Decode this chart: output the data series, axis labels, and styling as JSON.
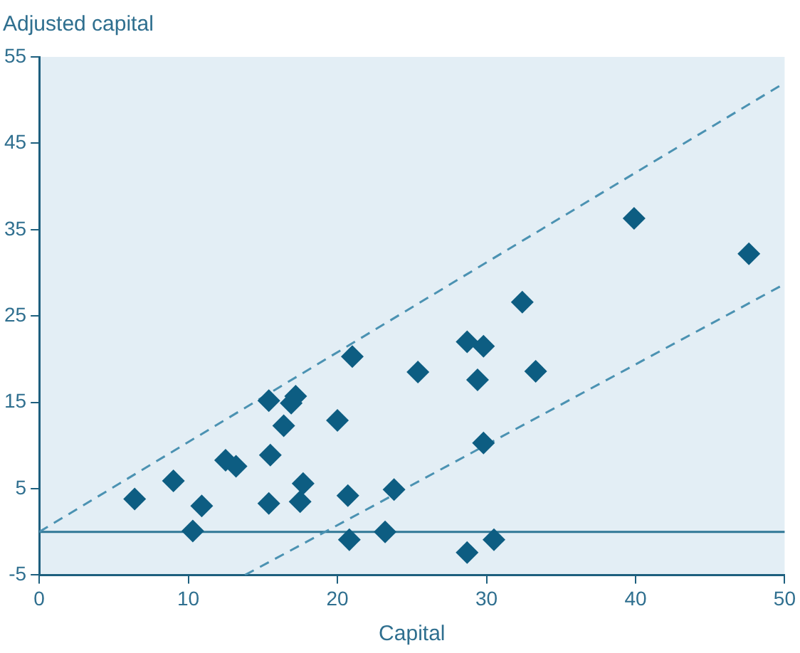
{
  "chart_data": {
    "type": "scatter",
    "ylabel": "Adjusted capital",
    "xlabel": "Capital",
    "xlim": [
      0,
      50
    ],
    "xticks": [
      0,
      10,
      20,
      30,
      40,
      50
    ],
    "ylim": [
      -5,
      55
    ],
    "yticks": [
      -5,
      5,
      15,
      25,
      35,
      45,
      55
    ],
    "grid": false,
    "legend": false,
    "marker": "diamond",
    "ref_lines": [
      {
        "axis": "y",
        "value": 0,
        "color": "#2f7796"
      }
    ],
    "series": [
      {
        "color": "#0d5d82",
        "x": [
          6.4,
          9.0,
          10.9,
          10.3,
          12.5,
          13.2,
          15.4,
          17.2,
          16.9,
          16.4,
          15.5,
          15.4,
          17.7,
          17.5,
          20.0,
          21.0,
          20.7,
          20.8,
          23.8,
          23.2,
          25.4,
          39.9,
          47.6,
          32.4,
          28.7,
          29.8,
          29.4,
          33.3,
          29.8,
          28.7,
          30.5
        ],
        "values": [
          3.8,
          5.9,
          3.0,
          0.1,
          8.3,
          7.6,
          15.2,
          15.7,
          14.9,
          12.3,
          8.9,
          3.3,
          5.6,
          3.5,
          12.9,
          20.3,
          4.2,
          -0.9,
          4.9,
          0,
          18.5,
          36.3,
          32.2,
          26.6,
          22.0,
          21.5,
          17.6,
          18.6,
          10.3,
          -2.4,
          -0.9
        ]
      },
      {
        "type": "line",
        "color": "#4b92b2",
        "line_style": "dashed",
        "marker": "none",
        "x": [
          0,
          50
        ],
        "values": [
          0,
          52
        ]
      },
      {
        "type": "line",
        "color": "#4b92b2",
        "line_style": "dashed",
        "marker": "none",
        "x": [
          13.8,
          50
        ],
        "values": [
          -5,
          28.7
        ]
      }
    ]
  }
}
